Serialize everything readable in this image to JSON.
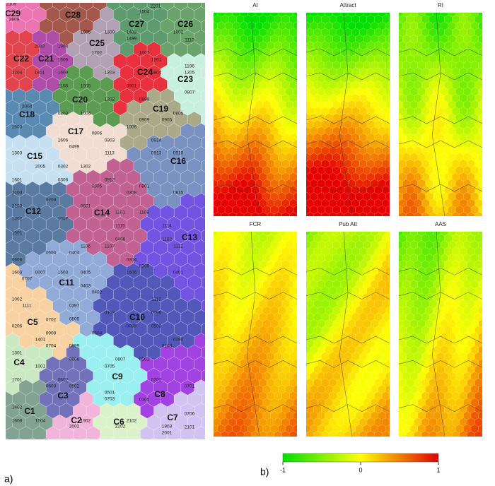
{
  "panel_a": {
    "label": "a)",
    "clusters": [
      "C29",
      "C28",
      "C27",
      "C26",
      "C25",
      "C21",
      "C22",
      "C24",
      "C23",
      "C20",
      "C18",
      "C19",
      "C17",
      "C15",
      "C16",
      "C14",
      "C12",
      "C13",
      "C11",
      "C10",
      "C5",
      "C4",
      "C9",
      "C3",
      "C8",
      "C1",
      "C2",
      "C6",
      "C7"
    ],
    "node_codes": [
      "2109",
      "2609",
      "1905",
      "1309",
      "1403",
      "1499",
      "1602",
      "1504",
      "2201",
      "1110",
      "2003",
      "1904",
      "1702",
      "1506",
      "2204",
      "1801",
      "1609",
      "1007",
      "1201",
      "1196",
      "1205",
      "0804",
      "1203",
      "0901",
      "0807",
      "1108",
      "1005",
      "1202",
      "0899",
      "0803",
      "1004",
      "0909",
      "0805",
      "0905",
      "2004",
      "1603",
      "1606",
      "0806",
      "0903",
      "1006",
      "0914",
      "1303",
      "0499",
      "1113",
      "0913",
      "0910",
      "2005",
      "0302",
      "1302",
      "1601",
      "0306",
      "0912",
      "2103",
      "0305",
      "0801",
      "0308",
      "0815",
      "0204",
      "0601",
      "2203",
      "1302",
      "1101",
      "1109",
      "1007",
      "1115",
      "1501",
      "1114",
      "1102",
      "1112",
      "1106",
      "1107",
      "0406",
      "0604",
      "0404",
      "0606",
      "0304",
      "1603",
      "0007",
      "1503",
      "0405",
      "1605",
      "0205",
      "0707",
      "0403",
      "0401",
      "0402",
      "1117",
      "1002",
      "1111",
      "0397",
      "0102",
      "0799",
      "0206",
      "0702",
      "0805",
      "0099",
      "0503",
      "1401",
      "0908",
      "0604",
      "0290",
      "0704",
      "0899",
      "0103",
      "1301",
      "0606",
      "0607",
      "0201",
      "1001",
      "0705",
      "0602",
      "0202",
      "1701",
      "0603",
      "0502",
      "0501",
      "0703",
      "0105",
      "1402",
      "1608",
      "1504",
      "1902",
      "2002",
      "2202",
      "1903",
      "2001",
      "2101",
      "0706",
      "2102",
      "0701"
    ]
  },
  "panel_b": {
    "label": "b)",
    "maps": [
      "AI",
      "Attract",
      "RI",
      "FCR",
      "Pub Att",
      "AAS"
    ],
    "colorbar": {
      "lim": [
        -1,
        1
      ],
      "ticks": [
        -1,
        0,
        1
      ]
    }
  }
}
